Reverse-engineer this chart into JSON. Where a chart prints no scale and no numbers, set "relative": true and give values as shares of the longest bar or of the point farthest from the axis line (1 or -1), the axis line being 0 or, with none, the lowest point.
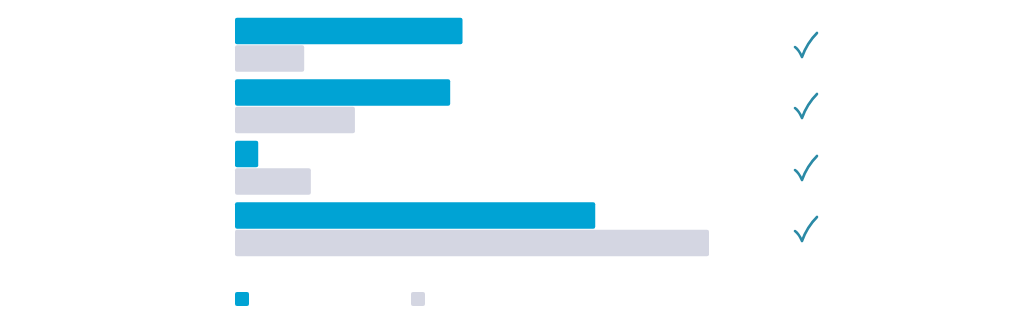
{
  "chart_data": {
    "type": "bar",
    "orientation": "horizontal",
    "relative": true,
    "categories": [
      null,
      null,
      null,
      null
    ],
    "series": [
      {
        "color": "#00a3d4",
        "values": [
          0.48,
          0.454,
          0.049,
          0.76
        ]
      },
      {
        "color": "#d4d6e2",
        "values": [
          0.146,
          0.253,
          0.16,
          1
        ]
      }
    ]
  }
}
